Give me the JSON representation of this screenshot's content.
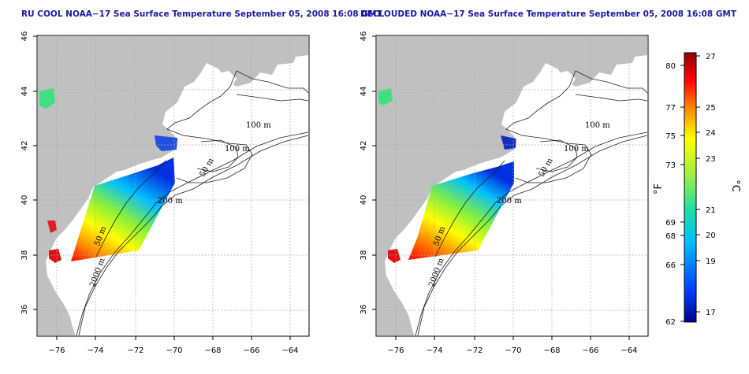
{
  "maps": [
    {
      "title": "RU COOL NOAA−17 Sea Surface Temperature September 05, 2008 16:08 GMT",
      "contour_labels": [
        "100 m",
        "100 m",
        "50 m",
        "200 m",
        "50 m",
        "2000 m"
      ]
    },
    {
      "title": "DECLOUDED NOAA−17 Sea Surface Temperature September 05, 2008 16:08 GMT",
      "contour_labels": [
        "100 m",
        "100 m",
        "50 m",
        "200 m",
        "50 m",
        "2000 m"
      ]
    }
  ],
  "axes": {
    "x_ticks": [
      "−76",
      "−74",
      "−72",
      "−70",
      "−68",
      "−66",
      "−64"
    ],
    "y_ticks": [
      "46",
      "44",
      "42",
      "40",
      "38",
      "36"
    ]
  },
  "colorbar": {
    "f_label": "°F",
    "c_label": "°C",
    "f_ticks": [
      "80",
      "77",
      "75",
      "73",
      "69",
      "68",
      "66",
      "62"
    ],
    "c_ticks": [
      "27",
      "25",
      "24",
      "23",
      "21",
      "20",
      "19",
      "17"
    ],
    "colors": [
      "#000090",
      "#0040ff",
      "#00c0ff",
      "#20e0a0",
      "#a0f040",
      "#ffff00",
      "#ff8000",
      "#ff0000",
      "#900000"
    ]
  },
  "legend_colors": {
    "land": "#c0c0c0",
    "ocean": "#ffffff",
    "grid": "#aaaaaa"
  }
}
